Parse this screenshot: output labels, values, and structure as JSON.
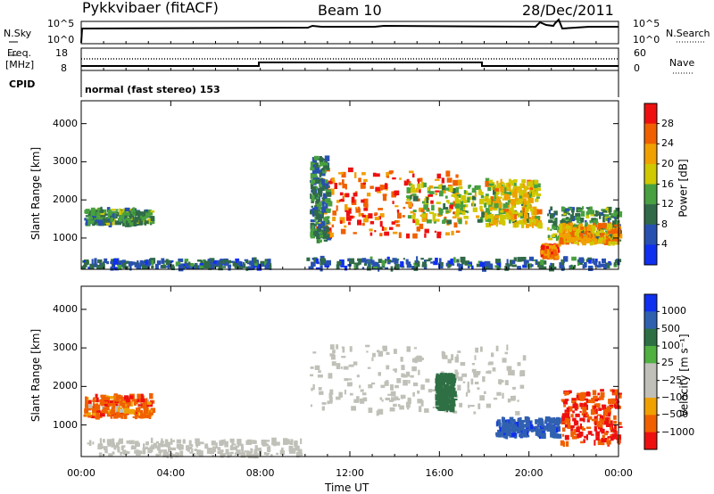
{
  "header": {
    "station": "Pykkvibaer (fitACF)",
    "beam": "Beam 10",
    "date": "28/Dec/2011"
  },
  "strips": {
    "nsky_label": "N.Sky",
    "nsky_ticks": [
      "10^5",
      "10^0"
    ],
    "nsearch_label": "N.Search",
    "nsearch_ticks": [
      "10^5",
      "10^0"
    ],
    "freq_label_1": "Freq.",
    "freq_label_2": "[MHz]",
    "freq_ticks": [
      "18",
      "8"
    ],
    "nave_label": "Nave",
    "nave_ticks": [
      "60",
      "0"
    ],
    "cpid_label": "CPID",
    "cpid_value": "normal (fast stereo) 153"
  },
  "colors": {
    "power": [
      "#1030f0",
      "#2850b0",
      "#306a48",
      "#48a040",
      "#d0c800",
      "#f0a000",
      "#f06000",
      "#ee1010"
    ],
    "velocity": [
      "#1030f0",
      "#3060b0",
      "#2e7044",
      "#50b040",
      "#c0c0b8",
      "#c0c0b8",
      "#f0a000",
      "#f06000",
      "#ee1010"
    ],
    "ground_scatter": "#b0b0a8"
  },
  "chart_data": [
    {
      "type": "heatmap",
      "panel": "power",
      "ylabel": "Slant Range [km]",
      "xlabel": "",
      "ylim": [
        180,
        4600
      ],
      "yticks": [
        "1000",
        "2000",
        "3000",
        "4000"
      ],
      "xticks": [
        "00:00",
        "04:00",
        "08:00",
        "12:00",
        "16:00",
        "20:00",
        "00:00"
      ],
      "colorbar_label": "Power [dB]",
      "colorbar_ticks": [
        "28",
        "24",
        "20",
        "16",
        "12",
        "8",
        "4"
      ],
      "regions": [
        {
          "t": [
            0.1,
            3.1
          ],
          "r": [
            1350,
            1750
          ],
          "value": 12
        },
        {
          "t": [
            0.0,
            8.4
          ],
          "r": [
            190,
            420
          ],
          "value": 8
        },
        {
          "t": [
            10.3,
            16.8
          ],
          "r": [
            1050,
            2800
          ],
          "value": 26
        },
        {
          "t": [
            10.2,
            11.0
          ],
          "r": [
            900,
            3100
          ],
          "value": 10
        },
        {
          "t": [
            14.5,
            20.0
          ],
          "r": [
            1400,
            2400
          ],
          "value": 16
        },
        {
          "t": [
            18.0,
            20.4
          ],
          "r": [
            1300,
            2500
          ],
          "value": 20
        },
        {
          "t": [
            20.8,
            24.0
          ],
          "r": [
            900,
            1800
          ],
          "value": 12
        },
        {
          "t": [
            20.5,
            21.2
          ],
          "r": [
            480,
            800
          ],
          "value": 26
        },
        {
          "t": [
            21.3,
            24.0
          ],
          "r": [
            850,
            1350
          ],
          "value": 22
        },
        {
          "t": [
            9.9,
            24.0
          ],
          "r": [
            190,
            460
          ],
          "value": 8
        }
      ]
    },
    {
      "type": "heatmap",
      "panel": "velocity",
      "ylabel": "Slant Range [km]",
      "xlabel": "Time UT",
      "ylim": [
        180,
        4600
      ],
      "yticks": [
        "1000",
        "2000",
        "3000",
        "4000"
      ],
      "xticks": [
        "00:00",
        "04:00",
        "08:00",
        "12:00",
        "16:00",
        "20:00",
        "00:00"
      ],
      "colorbar_label": "Velocity [m s⁻¹]",
      "colorbar_ticks": [
        "1000",
        "500",
        "100",
        "25",
        "−25",
        "−100",
        "−500",
        "−1000"
      ],
      "regions": [
        {
          "t": [
            0.1,
            3.1
          ],
          "r": [
            1200,
            1750
          ],
          "value": -300
        },
        {
          "t": [
            10.2,
            19.8
          ],
          "r": [
            1300,
            3050
          ],
          "value": 0
        },
        {
          "t": [
            15.8,
            16.6
          ],
          "r": [
            1400,
            2300
          ],
          "value": 150
        },
        {
          "t": [
            18.5,
            21.3
          ],
          "r": [
            700,
            1150
          ],
          "value": 800
        },
        {
          "t": [
            21.4,
            24.0
          ],
          "r": [
            500,
            1900
          ],
          "value": -500
        },
        {
          "t": [
            0.0,
            9.8
          ],
          "r": [
            190,
            600
          ],
          "value": 0
        }
      ]
    }
  ]
}
